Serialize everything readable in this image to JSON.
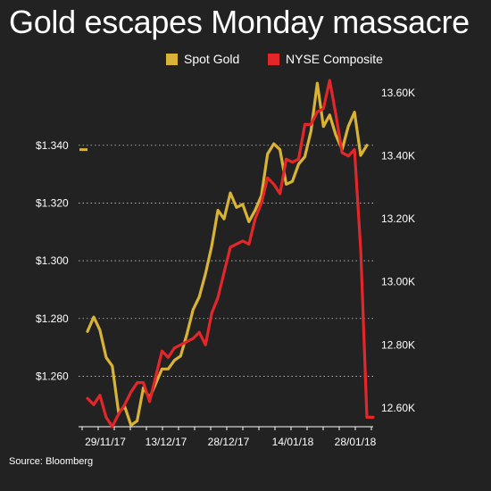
{
  "title": "Gold escapes Monday massacre",
  "source": "Source: Bloomberg",
  "colors": {
    "background": "#222222",
    "gold": "#d8b336",
    "nyse": "#e3262a",
    "text": "#ffffff",
    "grid": "#ffffff"
  },
  "chart_data": {
    "type": "line",
    "title": "Gold escapes Monday massacre",
    "grid": true,
    "legend_position": "top",
    "x_labels": [
      "29/11/17",
      "13/12/17",
      "28/12/17",
      "14/01/18",
      "28/01/18"
    ],
    "left_axis": {
      "ticks": [
        "$1.260",
        "$1.280",
        "$1.300",
        "$1.320",
        "$1.340"
      ],
      "ylim": [
        1.2425,
        1.3625
      ]
    },
    "right_axis": {
      "ticks": [
        "12.60K",
        "12.80K",
        "13.00K",
        "13.20K",
        "13.40K",
        "13.60K"
      ],
      "ylim": [
        12540,
        13640
      ]
    },
    "series": [
      {
        "name": "Spot Gold",
        "axis": "left",
        "color": "#d8b336",
        "values": [
          1.2755,
          1.2805,
          1.276,
          1.2665,
          1.2635,
          1.2475,
          1.2495,
          1.243,
          1.2445,
          1.256,
          1.2525,
          1.2575,
          1.2625,
          1.2625,
          1.2655,
          1.267,
          1.2745,
          1.283,
          1.2875,
          1.2955,
          1.305,
          1.3175,
          1.3145,
          1.3235,
          1.3185,
          1.3195,
          1.3135,
          1.3175,
          1.3225,
          1.337,
          1.3405,
          1.3385,
          1.3265,
          1.3275,
          1.3335,
          1.336,
          1.345,
          1.3615,
          1.3465,
          1.3505,
          1.3435,
          1.3385,
          1.3465,
          1.3515,
          1.3365,
          1.34
        ]
      },
      {
        "name": "NYSE Composite",
        "axis": "right",
        "color": "#e3262a",
        "values": [
          12630,
          12610,
          12640,
          12570,
          12540,
          12580,
          12610,
          12650,
          12680,
          12680,
          12620,
          12700,
          12780,
          12760,
          12790,
          12800,
          12810,
          12820,
          12840,
          12800,
          12900,
          12950,
          13030,
          13110,
          13120,
          13130,
          13120,
          13200,
          13250,
          13330,
          13310,
          13280,
          13390,
          13380,
          13390,
          13500,
          13500,
          13540,
          13550,
          13640,
          13530,
          13410,
          13400,
          13420,
          13100,
          12570,
          12570
        ]
      }
    ]
  }
}
